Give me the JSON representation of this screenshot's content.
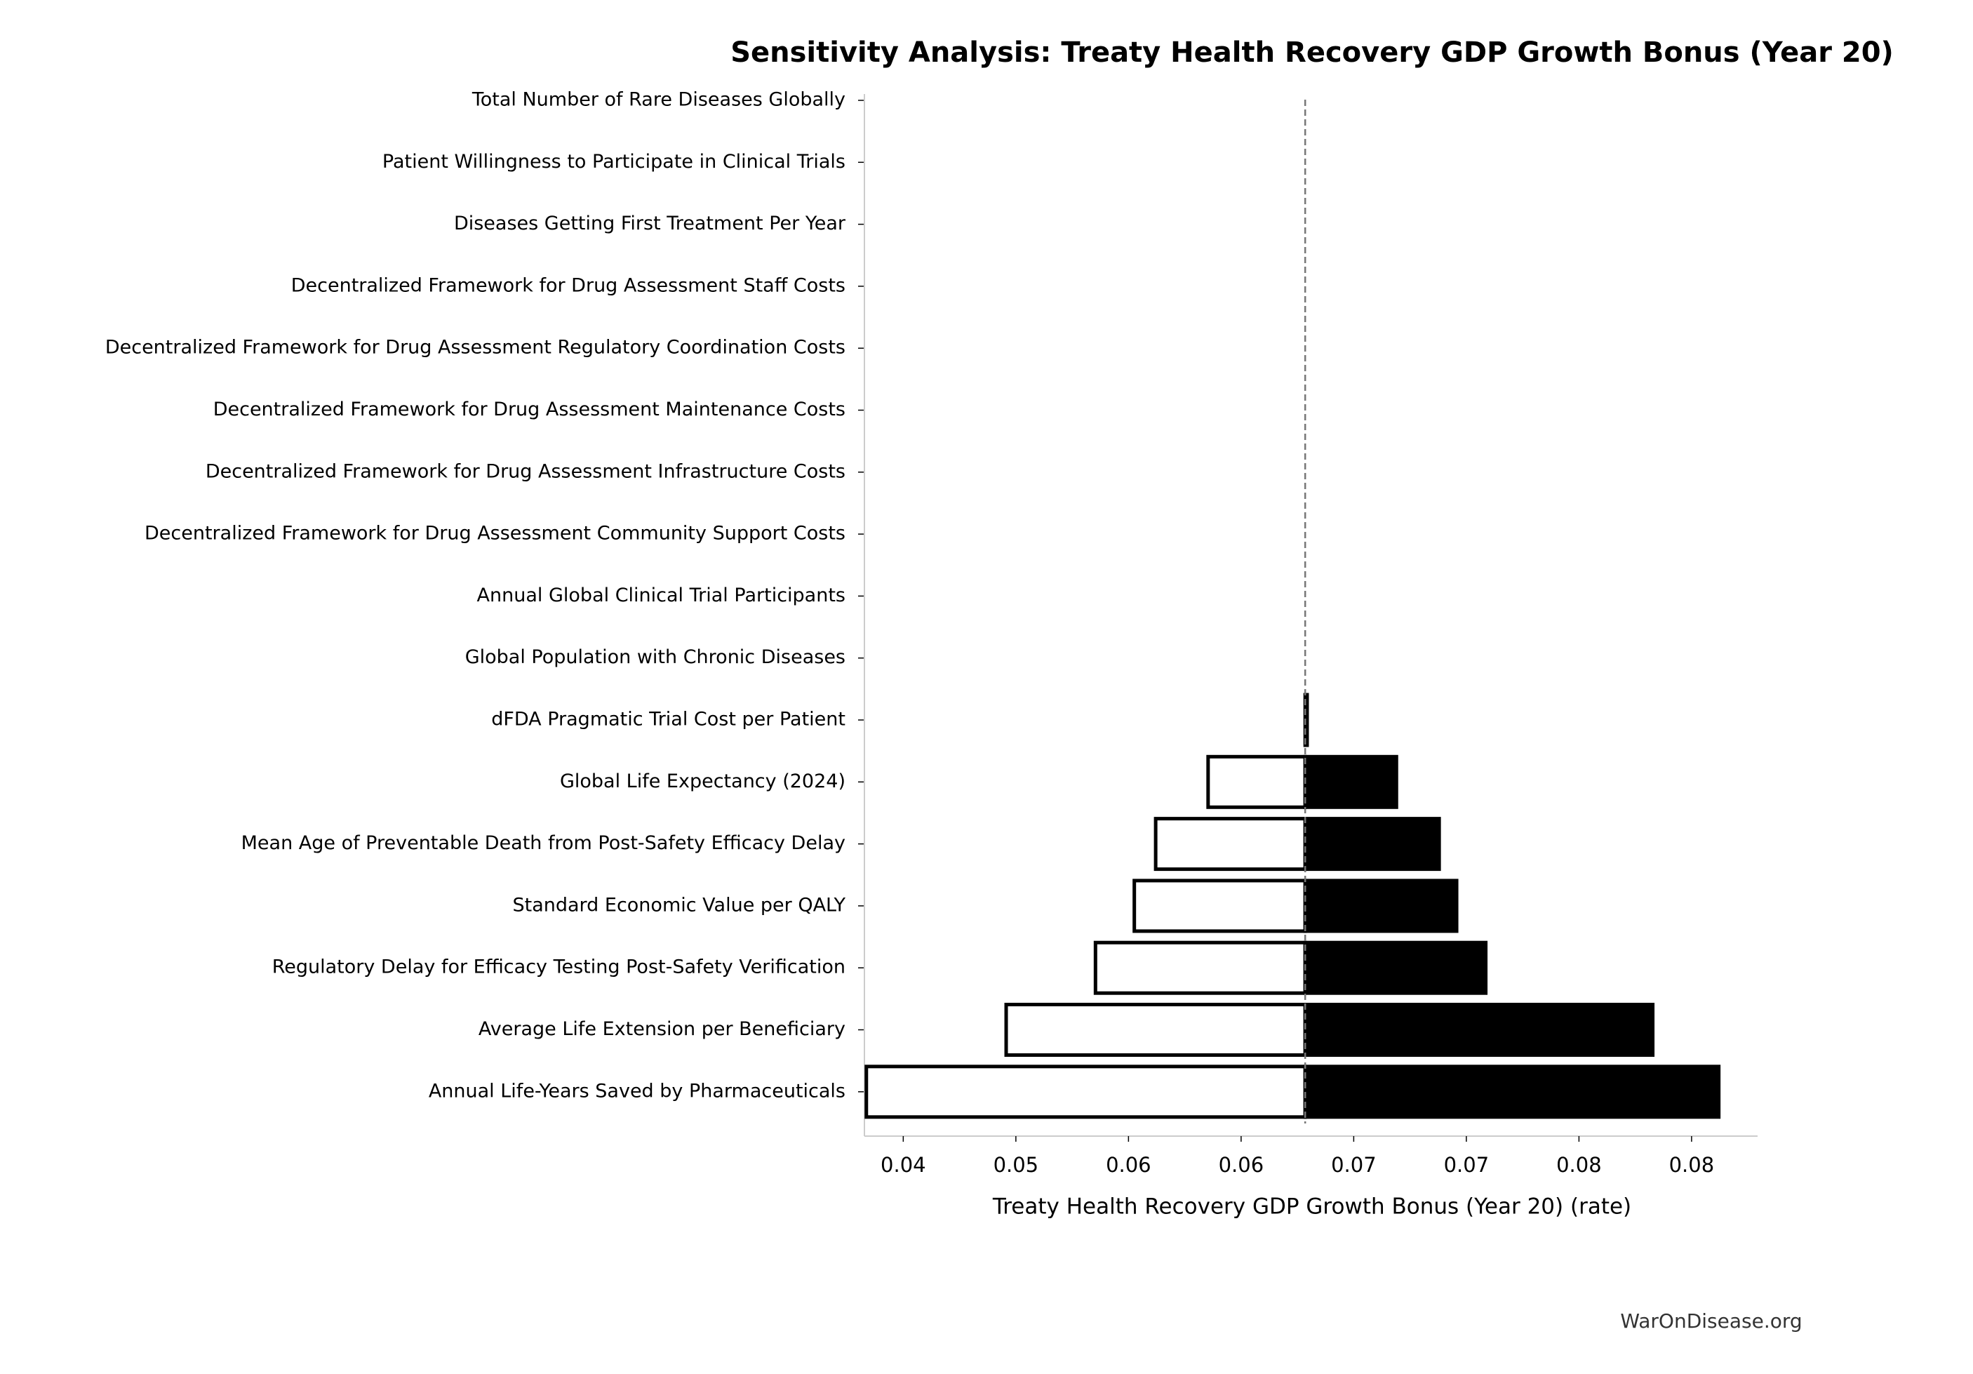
{
  "chart_data": {
    "type": "tornado",
    "title": "Sensitivity Analysis: Treaty Health Recovery GDP Growth Bonus (Year 20)",
    "xlabel": "Treaty Health Recovery GDP Growth Bonus (Year 20) (rate)",
    "footer": "WarOnDisease.org",
    "categories": [
      "Total Number of Rare Diseases Globally",
      "Patient Willingness to Participate in Clinical Trials",
      "Diseases Getting First Treatment Per Year",
      "Decentralized Framework for Drug Assessment Staff Costs",
      "Decentralized Framework for Drug Assessment Regulatory Coordination Costs",
      "Decentralized Framework for Drug Assessment Maintenance Costs",
      "Decentralized Framework for Drug Assessment Infrastructure Costs",
      "Decentralized Framework for Drug Assessment Community Support Costs",
      "Annual Global Clinical Trial Participants",
      "Global Population with Chronic Diseases",
      "dFDA Pragmatic Trial Cost per Patient",
      "Global Life Expectancy (2024)",
      "Mean Age of Preventable Death from Post-Safety Efficacy Delay",
      "Standard Economic Value per QALY",
      "Regulatory Delay for Efficacy Testing Post-Safety Verification",
      "Average Life Extension per Beneficiary",
      "Annual Life-Years Saved by Pharmaceuticals"
    ],
    "baseline": 0.0642,
    "series": [
      {
        "color": "#ffffff",
        "values": [
          0.0642,
          0.0642,
          0.0642,
          0.0642,
          0.0642,
          0.0642,
          0.0642,
          0.0642,
          0.0642,
          0.0642,
          0.0642,
          0.0592,
          0.0565,
          0.0554,
          0.0534,
          0.0488,
          0.0416
        ]
      },
      {
        "color": "#000000",
        "values": [
          0.0642,
          0.0642,
          0.0642,
          0.0642,
          0.0642,
          0.0642,
          0.0642,
          0.0642,
          0.0642,
          0.0642,
          0.0643,
          0.0689,
          0.0711,
          0.072,
          0.0735,
          0.0821,
          0.0855
        ]
      }
    ],
    "xlim": [
      0.0415,
      0.0875
    ],
    "xticks": [
      {
        "value": 0.0435,
        "label": "0.04"
      },
      {
        "value": 0.0493,
        "label": "0.05"
      },
      {
        "value": 0.0551,
        "label": "0.06"
      },
      {
        "value": 0.0609,
        "label": "0.06"
      },
      {
        "value": 0.0667,
        "label": "0.07"
      },
      {
        "value": 0.0725,
        "label": "0.07"
      },
      {
        "value": 0.0783,
        "label": "0.08"
      },
      {
        "value": 0.0841,
        "label": "0.08"
      }
    ]
  }
}
